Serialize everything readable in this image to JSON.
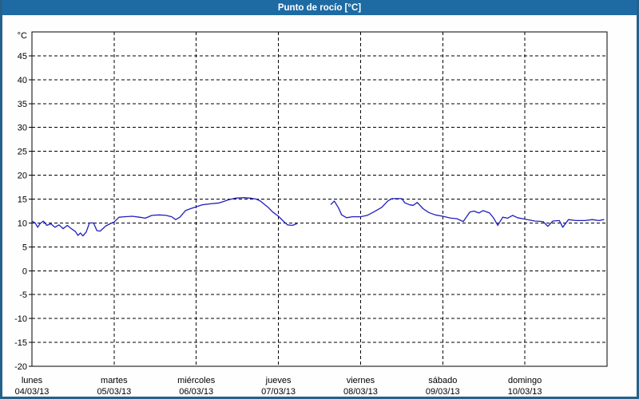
{
  "colors": {
    "titlebar_bg": "#1e6ba4",
    "frame": "#24618c",
    "plot_background": "#ffffff",
    "grid": "#000000",
    "series_line": "#1f1fbe",
    "title_text": "#ffffff",
    "axis_text": "#000000"
  },
  "chart_data": {
    "type": "line",
    "title": "Punto de rocío [°C]",
    "grid": "dashed",
    "legend": "none",
    "x_axis": {
      "min": 0,
      "max": 7,
      "unit": "days",
      "day_labels": [
        {
          "name": "lunes",
          "date": "04/03/13"
        },
        {
          "name": "martes",
          "date": "05/03/13"
        },
        {
          "name": "miércoles",
          "date": "06/03/13"
        },
        {
          "name": "jueves",
          "date": "07/03/13"
        },
        {
          "name": "viernes",
          "date": "08/03/13"
        },
        {
          "name": "sábado",
          "date": "09/03/13"
        },
        {
          "name": "domingo",
          "date": "10/03/13"
        }
      ]
    },
    "y_axis": {
      "min": -20,
      "max": 50,
      "tick_step": 5,
      "unit_label": "°C",
      "ticks": [
        45,
        40,
        35,
        30,
        25,
        20,
        15,
        10,
        5,
        0,
        -5,
        -10,
        -15,
        -20
      ]
    },
    "series": [
      {
        "name": "Punto de rocío",
        "unit": "°C",
        "color": "#1f1fbe",
        "segments": [
          [
            [
              0.0,
              10.4
            ],
            [
              0.04,
              10.0
            ],
            [
              0.07,
              9.1
            ],
            [
              0.1,
              9.9
            ],
            [
              0.14,
              10.4
            ],
            [
              0.18,
              9.5
            ],
            [
              0.23,
              9.8
            ],
            [
              0.28,
              9.1
            ],
            [
              0.33,
              9.6
            ],
            [
              0.38,
              8.8
            ],
            [
              0.43,
              9.5
            ],
            [
              0.48,
              8.8
            ],
            [
              0.53,
              8.2
            ],
            [
              0.56,
              7.4
            ],
            [
              0.59,
              7.9
            ],
            [
              0.62,
              7.3
            ],
            [
              0.66,
              8.1
            ],
            [
              0.7,
              10.0
            ],
            [
              0.75,
              10.0
            ],
            [
              0.79,
              8.4
            ],
            [
              0.83,
              8.3
            ],
            [
              0.9,
              9.4
            ],
            [
              0.96,
              9.9
            ],
            [
              1.0,
              10.2
            ],
            [
              1.06,
              11.2
            ],
            [
              1.13,
              11.3
            ],
            [
              1.22,
              11.4
            ],
            [
              1.31,
              11.2
            ],
            [
              1.38,
              11.0
            ],
            [
              1.46,
              11.6
            ],
            [
              1.55,
              11.7
            ],
            [
              1.63,
              11.6
            ],
            [
              1.7,
              11.3
            ],
            [
              1.75,
              10.7
            ],
            [
              1.8,
              11.2
            ],
            [
              1.87,
              12.6
            ],
            [
              1.93,
              13.0
            ],
            [
              2.0,
              13.4
            ],
            [
              2.07,
              13.8
            ],
            [
              2.16,
              14.0
            ],
            [
              2.28,
              14.2
            ],
            [
              2.4,
              14.9
            ],
            [
              2.48,
              15.2
            ],
            [
              2.58,
              15.3
            ],
            [
              2.66,
              15.2
            ],
            [
              2.73,
              15.0
            ],
            [
              2.78,
              14.6
            ],
            [
              2.83,
              13.9
            ],
            [
              2.88,
              13.2
            ],
            [
              2.93,
              12.3
            ],
            [
              3.0,
              11.4
            ],
            [
              3.06,
              10.4
            ],
            [
              3.11,
              9.6
            ],
            [
              3.17,
              9.5
            ],
            [
              3.22,
              9.8
            ]
          ],
          [
            [
              3.64,
              13.9
            ],
            [
              3.68,
              14.6
            ],
            [
              3.73,
              13.2
            ],
            [
              3.77,
              11.7
            ],
            [
              3.83,
              11.1
            ],
            [
              3.9,
              11.3
            ],
            [
              4.0,
              11.3
            ],
            [
              4.08,
              11.6
            ],
            [
              4.17,
              12.4
            ],
            [
              4.26,
              13.3
            ],
            [
              4.33,
              14.6
            ],
            [
              4.38,
              15.1
            ],
            [
              4.5,
              15.1
            ],
            [
              4.54,
              14.2
            ],
            [
              4.6,
              13.8
            ],
            [
              4.64,
              13.7
            ],
            [
              4.69,
              14.3
            ],
            [
              4.76,
              13.0
            ],
            [
              4.83,
              12.2
            ],
            [
              4.91,
              11.7
            ],
            [
              5.0,
              11.4
            ],
            [
              5.1,
              11.0
            ],
            [
              5.17,
              10.9
            ],
            [
              5.25,
              10.3
            ],
            [
              5.33,
              12.3
            ],
            [
              5.38,
              12.5
            ],
            [
              5.44,
              12.1
            ],
            [
              5.49,
              12.6
            ],
            [
              5.57,
              12.1
            ],
            [
              5.62,
              11.0
            ],
            [
              5.67,
              9.5
            ],
            [
              5.73,
              11.2
            ],
            [
              5.79,
              11.0
            ],
            [
              5.85,
              11.6
            ],
            [
              5.91,
              11.1
            ],
            [
              6.0,
              10.8
            ],
            [
              6.12,
              10.4
            ],
            [
              6.22,
              10.3
            ],
            [
              6.28,
              9.3
            ],
            [
              6.34,
              10.4
            ],
            [
              6.42,
              10.5
            ],
            [
              6.46,
              9.1
            ],
            [
              6.53,
              10.7
            ],
            [
              6.62,
              10.5
            ],
            [
              6.73,
              10.5
            ],
            [
              6.82,
              10.7
            ],
            [
              6.9,
              10.5
            ],
            [
              6.96,
              10.7
            ]
          ]
        ]
      }
    ]
  }
}
